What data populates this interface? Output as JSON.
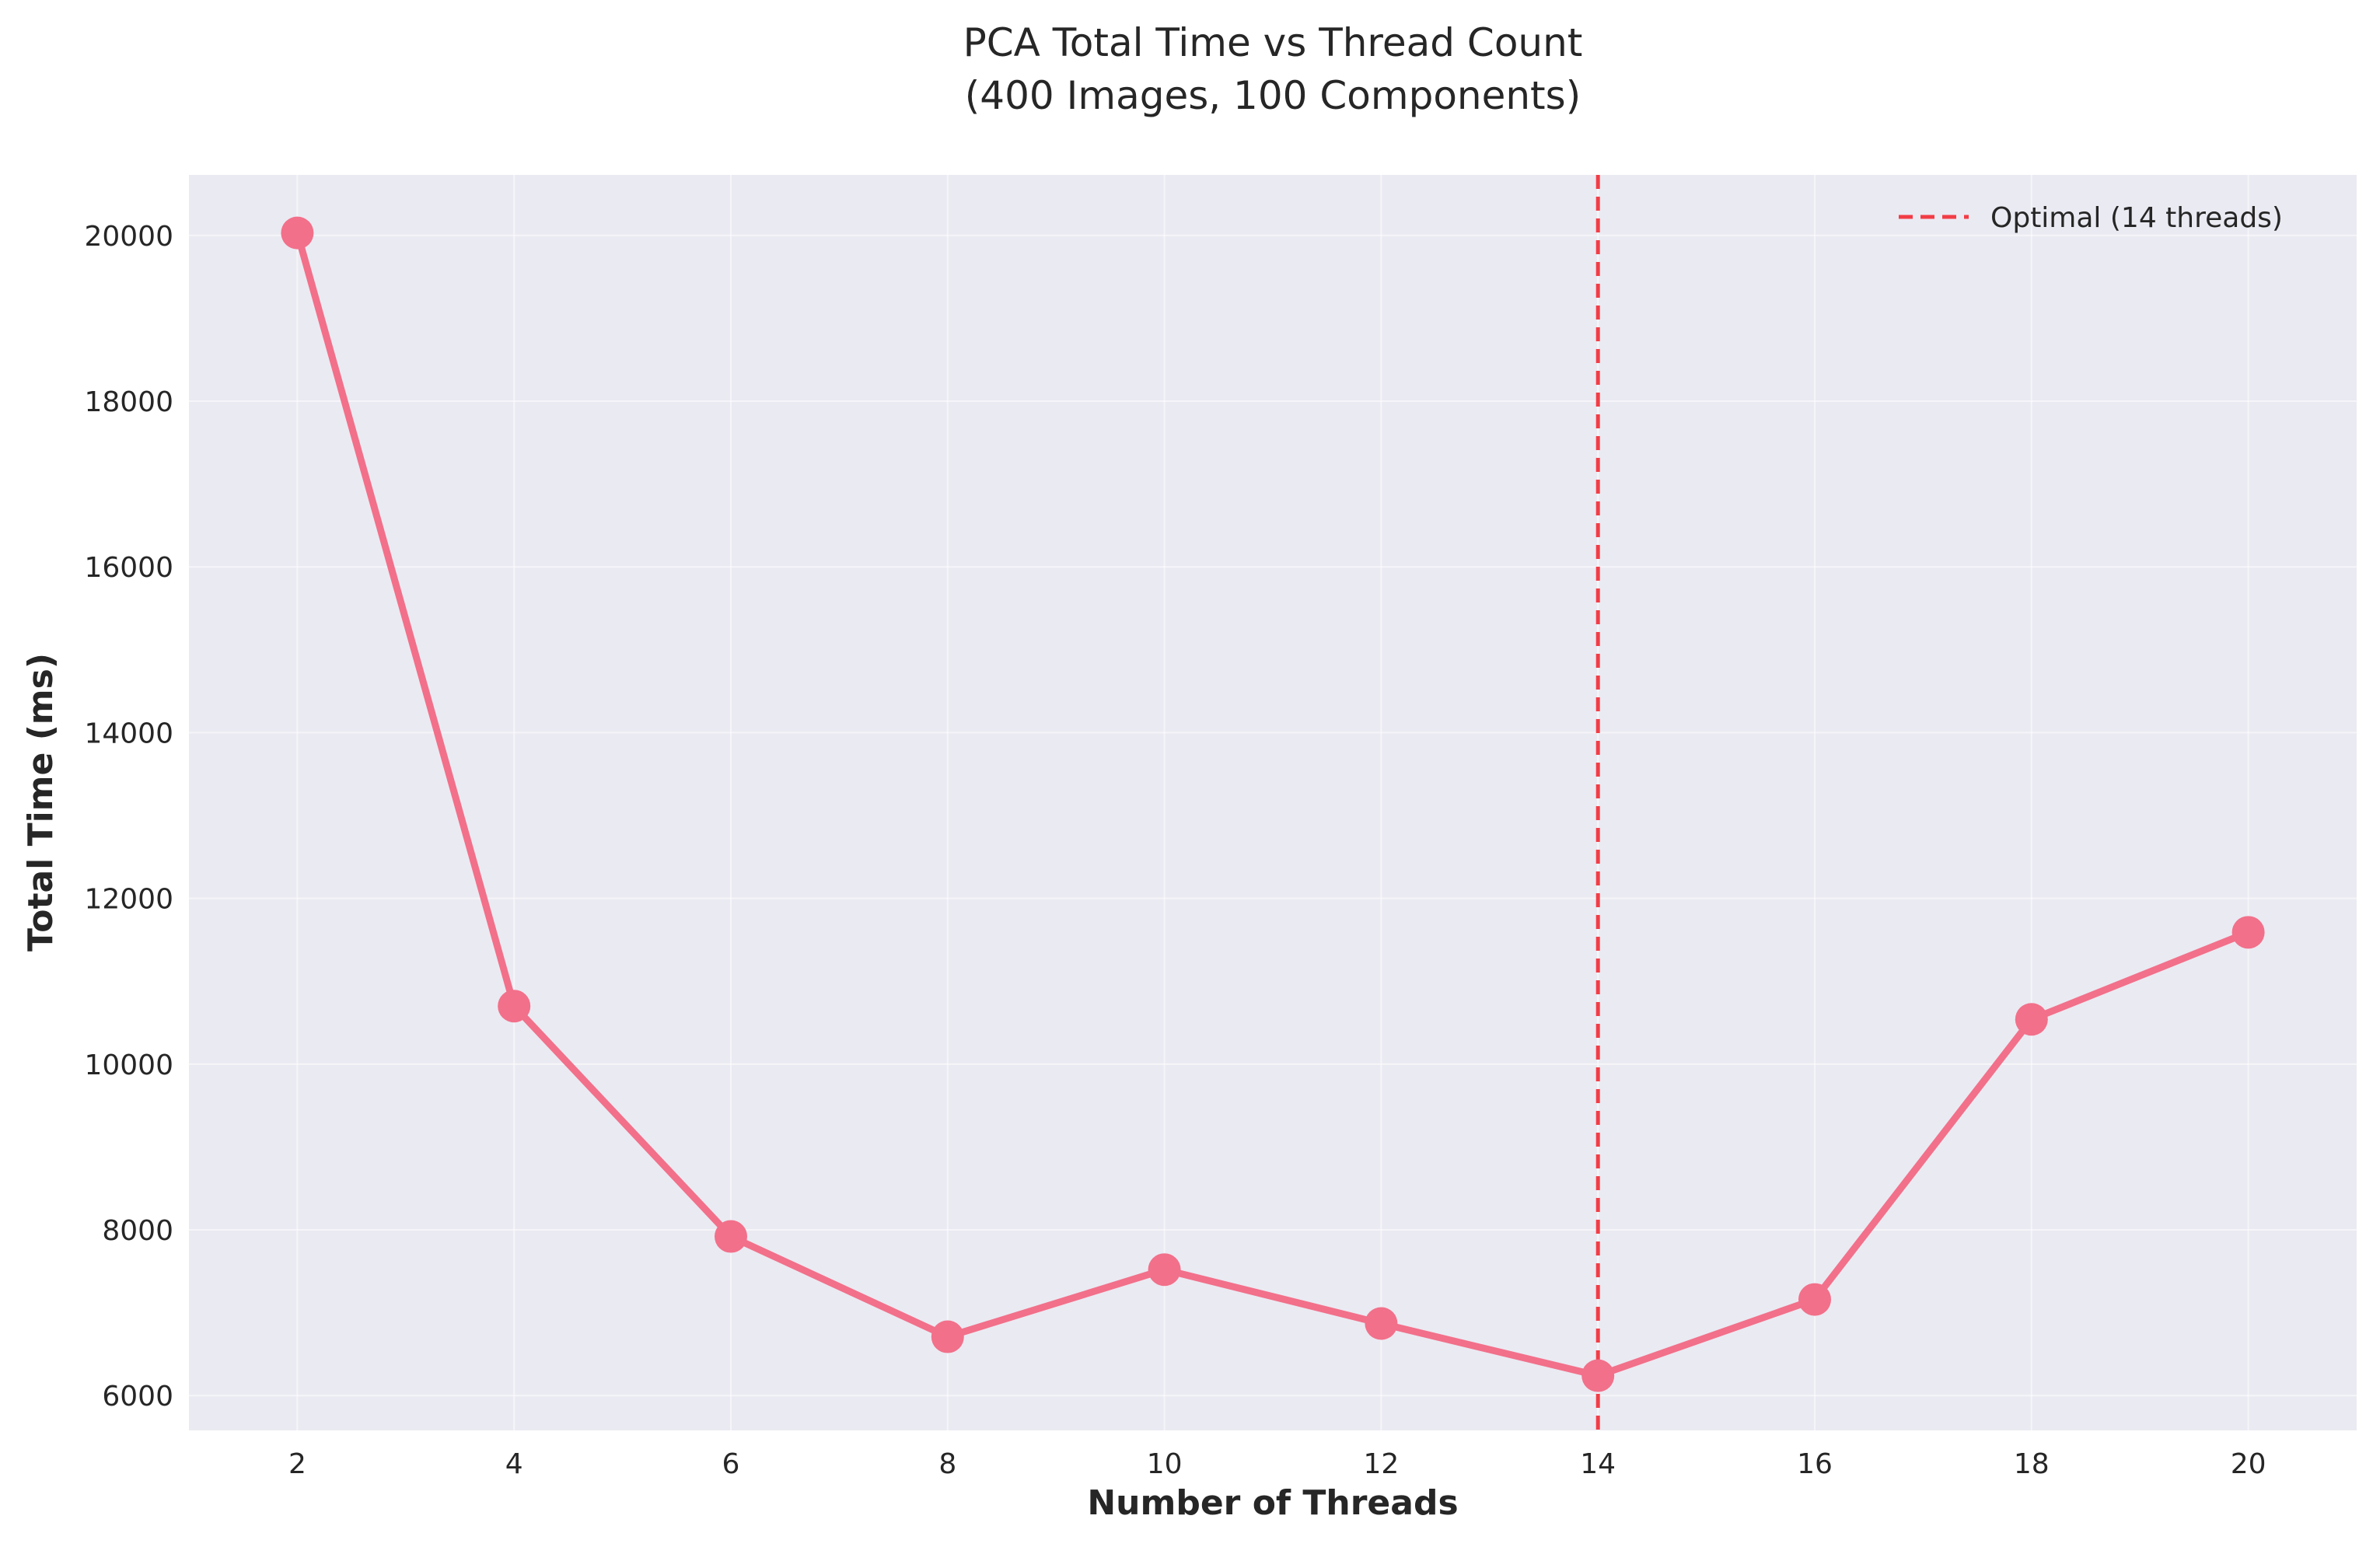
{
  "chart_data": {
    "type": "line",
    "title": "PCA Total Time vs Thread Count",
    "subtitle": "(400 Images, 100 Components)",
    "xlabel": "Number of Threads",
    "ylabel": "Total Time (ms)",
    "x": [
      2,
      4,
      6,
      8,
      10,
      12,
      14,
      16,
      18,
      20
    ],
    "series": [
      {
        "values": [
          20030,
          10700,
          7920,
          6710,
          7520,
          6870,
          6240,
          7160,
          10540,
          11590
        ],
        "color": "#f2708a"
      }
    ],
    "xticks": [
      "2",
      "4",
      "6",
      "8",
      "10",
      "12",
      "14",
      "16",
      "18",
      "20"
    ],
    "yticks": [
      "6000",
      "8000",
      "10000",
      "12000",
      "14000",
      "16000",
      "18000",
      "20000"
    ],
    "xlim": [
      1,
      21
    ],
    "ylim": [
      5580,
      20730
    ],
    "grid": true,
    "background_color": "#eaeaf2",
    "annotations": [
      {
        "type": "vline",
        "x": 14,
        "label": "Optimal (14 threads)",
        "color": "#f23d46",
        "style": "dashed"
      }
    ],
    "legend_position": "top-right"
  }
}
